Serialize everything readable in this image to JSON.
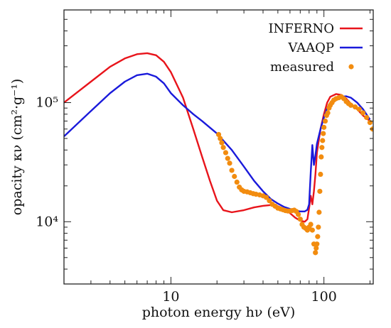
{
  "chart_data": {
    "type": "line",
    "xlabel": "photon energy hν (eV)",
    "ylabel": "opacity κν (cm²·g⁻¹)",
    "xscale": "log",
    "yscale": "log",
    "xlim": [
      2,
      210
    ],
    "ylim": [
      3000,
      600000
    ],
    "x_ticks": [
      10,
      100
    ],
    "x_tick_labels": [
      "10",
      "100"
    ],
    "y_ticks": [
      10000,
      100000
    ],
    "y_tick_labels": [
      "10⁴",
      "10⁵"
    ],
    "legend_position": "top-right",
    "grid": false,
    "series": [
      {
        "name": "INFERNO",
        "style": "line",
        "color": "#e8141b",
        "x": [
          2,
          3,
          4,
          5,
          6,
          7,
          8,
          9,
          10,
          12,
          14,
          16,
          18,
          20,
          22,
          25,
          30,
          35,
          40,
          45,
          50,
          55,
          60,
          65,
          70,
          75,
          78,
          80,
          82,
          84,
          86,
          88,
          90,
          95,
          100,
          105,
          110,
          120,
          130,
          140,
          150,
          165,
          180,
          200
        ],
        "y": [
          100000,
          150000,
          200000,
          235000,
          255000,
          260000,
          250000,
          220000,
          180000,
          110000,
          60000,
          35000,
          22000,
          15000,
          12500,
          12000,
          12500,
          13200,
          13600,
          13800,
          13500,
          12800,
          11800,
          10800,
          10200,
          10000,
          10500,
          13000,
          16500,
          14000,
          18000,
          25000,
          38000,
          60000,
          80000,
          100000,
          112000,
          118000,
          116000,
          108000,
          98000,
          88000,
          78000,
          70000
        ]
      },
      {
        "name": "VAAQP",
        "style": "line",
        "color": "#1a1adb",
        "x": [
          2,
          3,
          4,
          5,
          6,
          7,
          8,
          9,
          10,
          12,
          14,
          16,
          20,
          25,
          30,
          35,
          40,
          45,
          50,
          55,
          60,
          65,
          70,
          75,
          78,
          80,
          82,
          84,
          86,
          88,
          90,
          95,
          100,
          105,
          110,
          120,
          130,
          140,
          150,
          165,
          180,
          200
        ],
        "y": [
          52000,
          85000,
          120000,
          150000,
          170000,
          175000,
          165000,
          145000,
          120000,
          95000,
          80000,
          70000,
          55000,
          40000,
          29000,
          22000,
          18000,
          15500,
          14200,
          13300,
          12800,
          12400,
          12200,
          12200,
          12600,
          14000,
          26000,
          44000,
          30000,
          36000,
          45000,
          60000,
          75000,
          90000,
          100000,
          108000,
          112000,
          113000,
          110000,
          100000,
          88000,
          72000
        ]
      },
      {
        "name": "measured",
        "style": "points",
        "color": "#f28c0f",
        "x": [
          20.5,
          21,
          21.5,
          22,
          22.8,
          23.5,
          24.2,
          25,
          26,
          27,
          28,
          29,
          30,
          31.5,
          33,
          34.5,
          36,
          38,
          40,
          42,
          44,
          46,
          48,
          50,
          52,
          54,
          56,
          58,
          60,
          62,
          64,
          66,
          68,
          70,
          72,
          74,
          76,
          78,
          80,
          82,
          84,
          86,
          88,
          89,
          90,
          91,
          92,
          93,
          94,
          95,
          96,
          97,
          98,
          99,
          100,
          102,
          104,
          106,
          108,
          110,
          113,
          116,
          120,
          125,
          130,
          135,
          140,
          145,
          150,
          160,
          170,
          180,
          190,
          200,
          208
        ],
        "y": [
          54000,
          50000,
          46000,
          42000,
          38000,
          34000,
          31000,
          27000,
          24000,
          21500,
          19500,
          18500,
          18000,
          17800,
          17500,
          17200,
          17000,
          16800,
          16500,
          16000,
          15000,
          14000,
          13500,
          13000,
          12800,
          12600,
          12400,
          12300,
          12300,
          12400,
          12500,
          12200,
          11500,
          10500,
          9500,
          9000,
          8800,
          8500,
          9000,
          9500,
          8500,
          6500,
          5500,
          6000,
          6500,
          7500,
          9000,
          12000,
          18000,
          25000,
          35000,
          42000,
          48000,
          55000,
          62000,
          70000,
          78000,
          82000,
          90000,
          95000,
          100000,
          105000,
          108000,
          110000,
          112000,
          108000,
          102000,
          98000,
          95000,
          92000,
          88000,
          82000,
          75000,
          68000,
          60000
        ]
      }
    ]
  }
}
